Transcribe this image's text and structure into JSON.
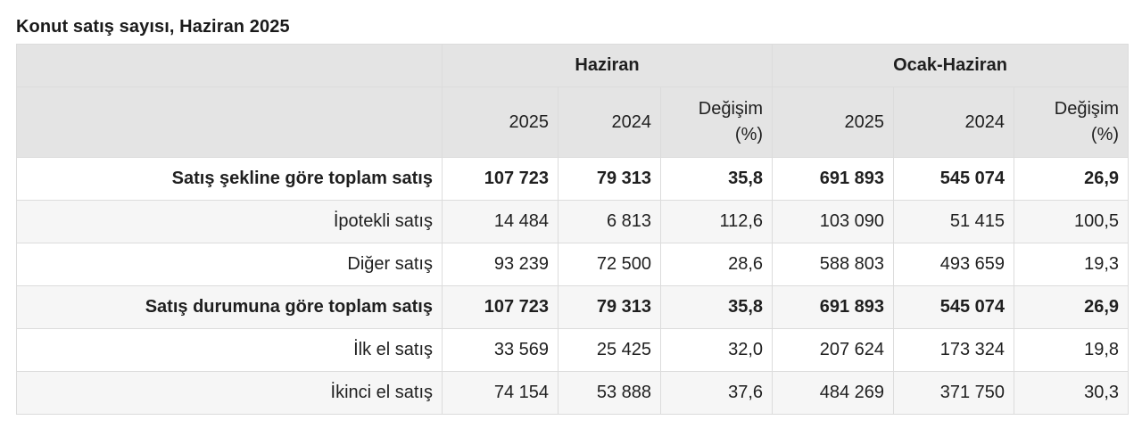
{
  "title": "Konut satış sayısı, Haziran 2025",
  "header": {
    "group_june": "Haziran",
    "group_jan_june": "Ocak-Haziran",
    "col_2025": "2025",
    "col_2024": "2024",
    "change_line1": "Değişim",
    "change_line2": "(%)"
  },
  "rows": [
    {
      "label": "Satış şekline göre toplam satış",
      "v": [
        "107 723",
        "79 313",
        "35,8",
        "691 893",
        "545 074",
        "26,9"
      ]
    },
    {
      "label": "İpotekli satış",
      "v": [
        "14 484",
        "6 813",
        "112,6",
        "103 090",
        "51 415",
        "100,5"
      ]
    },
    {
      "label": "Diğer satış",
      "v": [
        "93 239",
        "72 500",
        "28,6",
        "588 803",
        "493 659",
        "19,3"
      ]
    },
    {
      "label": "Satış durumuna göre toplam satış",
      "v": [
        "107 723",
        "79 313",
        "35,8",
        "691 893",
        "545 074",
        "26,9"
      ]
    },
    {
      "label": "İlk el satış",
      "v": [
        "33 569",
        "25 425",
        "32,0",
        "207 624",
        "173 324",
        "19,8"
      ]
    },
    {
      "label": "İkinci el satış",
      "v": [
        "74 154",
        "53 888",
        "37,6",
        "484 269",
        "371 750",
        "30,3"
      ]
    }
  ]
}
